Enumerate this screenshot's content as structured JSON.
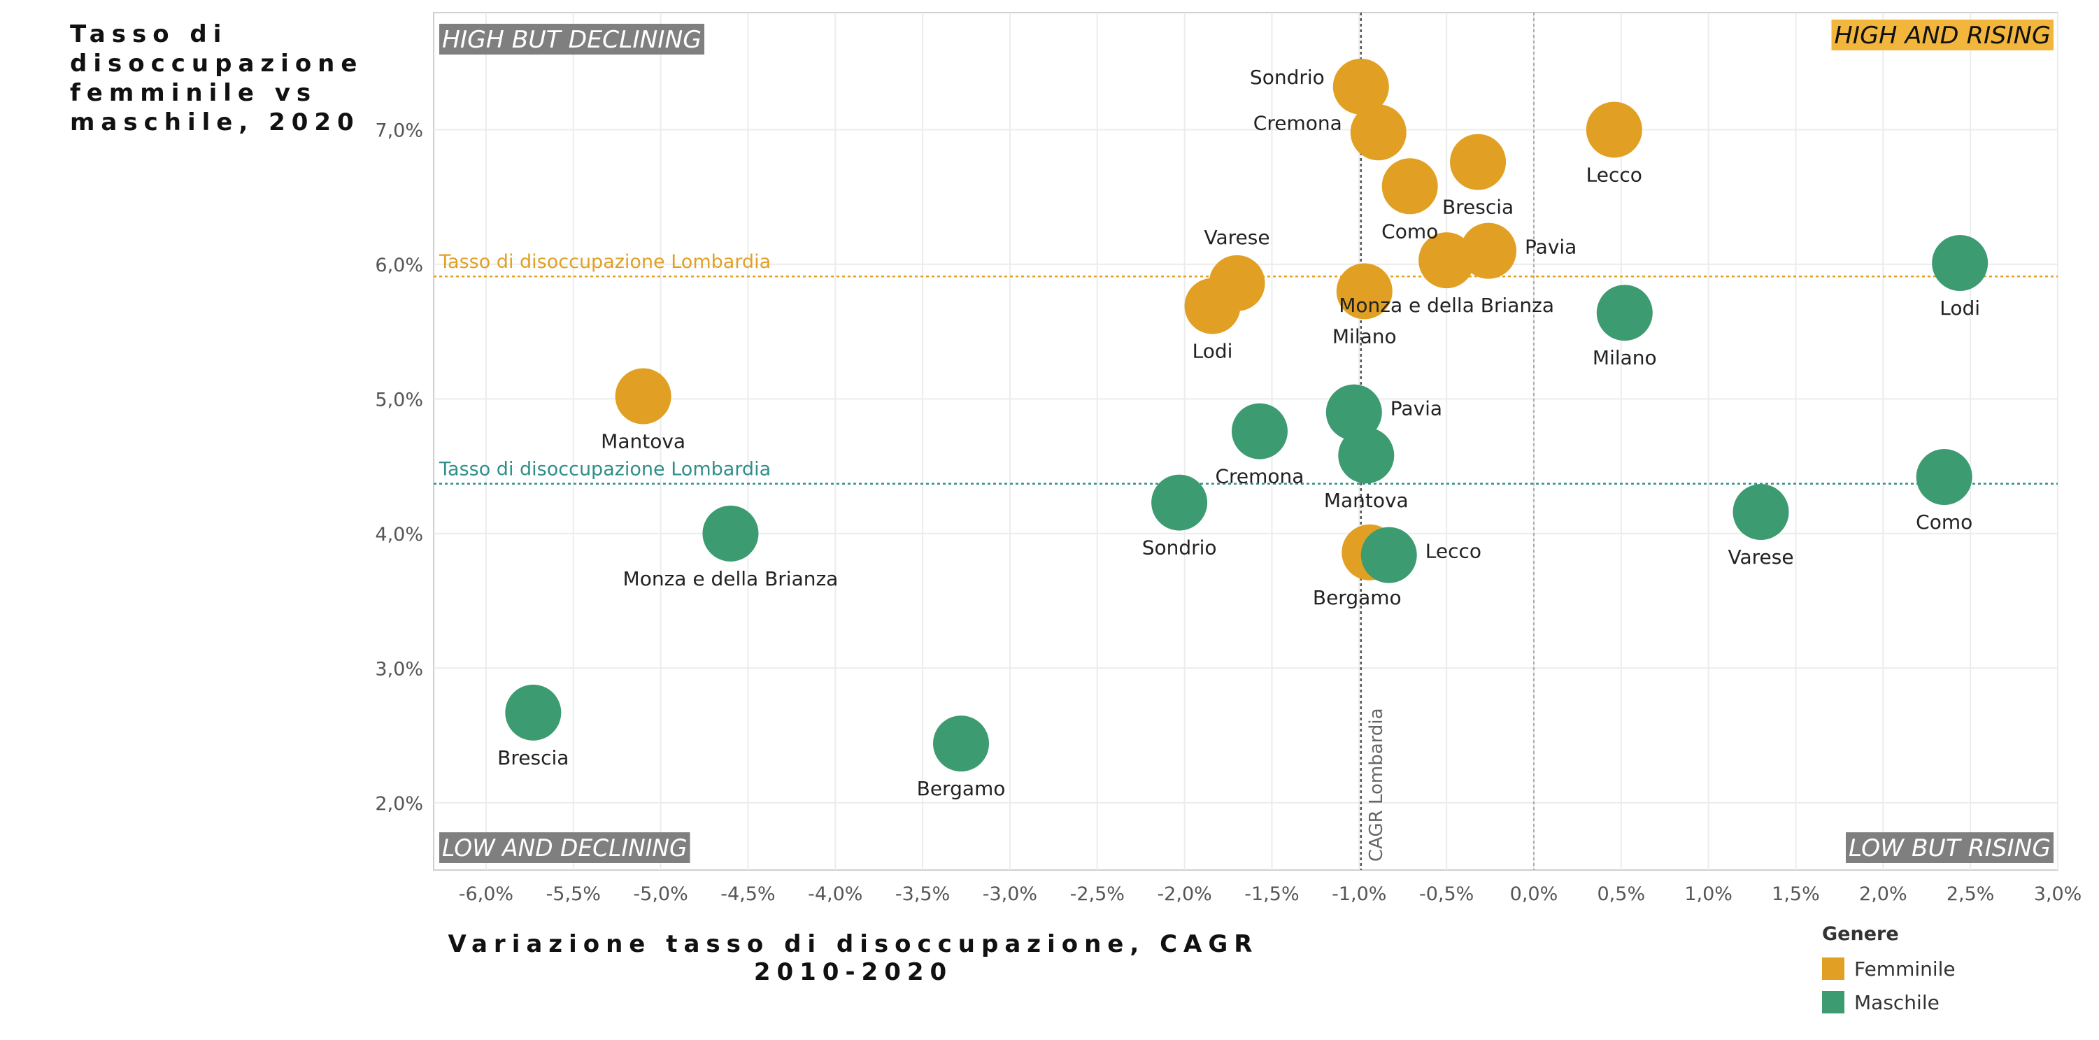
{
  "chart_data": {
    "type": "scatter",
    "title": "Tasso di disoccupazione femminile vs maschile, 2020",
    "xlabel": "Variazione tasso di disoccupazione, CAGR 2010-2020",
    "ylabel": "Tasso di disoccupazione femminile vs maschile, 2020",
    "xlim": [
      -6.3,
      3.0
    ],
    "ylim": [
      1.5,
      7.87
    ],
    "x_ticks": [
      -6.0,
      -5.5,
      -5.0,
      -4.5,
      -4.0,
      -3.5,
      -3.0,
      -2.5,
      -2.0,
      -1.5,
      -1.0,
      -0.5,
      0.0,
      0.5,
      1.0,
      1.5,
      2.0,
      2.5,
      3.0
    ],
    "x_tick_labels": [
      "-6,0%",
      "-5,5%",
      "-5,0%",
      "-4,5%",
      "-4,0%",
      "-3,5%",
      "-3,0%",
      "-2,5%",
      "-2,0%",
      "-1,5%",
      "-1,0%",
      "-0,5%",
      "0,0%",
      "0,5%",
      "1,0%",
      "1,5%",
      "2,0%",
      "2,5%",
      "3,0%"
    ],
    "y_ticks": [
      2.0,
      3.0,
      4.0,
      5.0,
      6.0,
      7.0
    ],
    "y_tick_labels": [
      "2,0%",
      "3,0%",
      "4,0%",
      "5,0%",
      "6,0%",
      "7,0%"
    ],
    "quadrant_labels": {
      "top_left": "HIGH BUT DECLINING",
      "top_right": "HIGH AND RISING",
      "bottom_left": "LOW AND DECLINING",
      "bottom_right": "LOW BUT RISING"
    },
    "reference_lines": {
      "cagr_lombardia": {
        "x": -0.99,
        "label": "CAGR Lombardia"
      },
      "zero": {
        "x": 0.0
      },
      "female_rate": {
        "y": 5.91,
        "label": "Tasso di disoccupazione Lombardia",
        "series": "Femminile"
      },
      "male_rate": {
        "y": 4.37,
        "label": "Tasso di disoccupazione Lombardia",
        "series": "Maschile"
      }
    },
    "legend": {
      "title": "Genere",
      "items": [
        {
          "name": "Femminile",
          "color": "#E1A023"
        },
        {
          "name": "Maschile",
          "color": "#3C9B70"
        }
      ]
    },
    "colors": {
      "Femminile": "#E1A023",
      "Maschile": "#3C9B70"
    },
    "series": [
      {
        "name": "Femminile",
        "points": [
          {
            "label": "Sondrio",
            "x": -0.99,
            "y": 7.32,
            "anchor": "w"
          },
          {
            "label": "Cremona",
            "x": -0.89,
            "y": 6.98,
            "anchor": "w"
          },
          {
            "label": "Lecco",
            "x": 0.46,
            "y": 7.0,
            "anchor": "s"
          },
          {
            "label": "Brescia",
            "x": -0.32,
            "y": 6.76,
            "anchor": "s"
          },
          {
            "label": "Como",
            "x": -0.71,
            "y": 6.58,
            "anchor": "s"
          },
          {
            "label": "Pavia",
            "x": -0.26,
            "y": 6.1,
            "anchor": "e"
          },
          {
            "label": "Monza e della Brianza",
            "x": -0.5,
            "y": 6.03,
            "anchor": "s"
          },
          {
            "label": "Varese",
            "x": -1.7,
            "y": 5.86,
            "anchor": "n"
          },
          {
            "label": "Milano",
            "x": -0.97,
            "y": 5.8,
            "anchor": "s"
          },
          {
            "label": "Lodi",
            "x": -1.84,
            "y": 5.69,
            "anchor": "s"
          },
          {
            "label": "Mantova",
            "x": -5.1,
            "y": 5.02,
            "anchor": "s"
          },
          {
            "label": "Bergamo",
            "x": -0.94,
            "y": 3.86,
            "anchor": "sw"
          }
        ]
      },
      {
        "name": "Maschile",
        "points": [
          {
            "label": "Lodi",
            "x": 2.44,
            "y": 6.01,
            "anchor": "s"
          },
          {
            "label": "Milano",
            "x": 0.52,
            "y": 5.64,
            "anchor": "s"
          },
          {
            "label": "Pavia",
            "x": -1.03,
            "y": 4.9,
            "anchor": "e"
          },
          {
            "label": "Cremona",
            "x": -1.57,
            "y": 4.76,
            "anchor": "s"
          },
          {
            "label": "Mantova",
            "x": -0.96,
            "y": 4.58,
            "anchor": "s"
          },
          {
            "label": "Como",
            "x": 2.35,
            "y": 4.42,
            "anchor": "s"
          },
          {
            "label": "Sondrio",
            "x": -2.03,
            "y": 4.23,
            "anchor": "s"
          },
          {
            "label": "Varese",
            "x": 1.3,
            "y": 4.16,
            "anchor": "s"
          },
          {
            "label": "Monza e della Brianza",
            "x": -4.6,
            "y": 4.0,
            "anchor": "s"
          },
          {
            "label": "Lecco",
            "x": -0.83,
            "y": 3.84,
            "anchor": "e"
          },
          {
            "label": "Brescia",
            "x": -5.73,
            "y": 2.67,
            "anchor": "s"
          },
          {
            "label": "Bergamo",
            "x": -3.28,
            "y": 2.44,
            "anchor": "s"
          }
        ]
      }
    ]
  }
}
